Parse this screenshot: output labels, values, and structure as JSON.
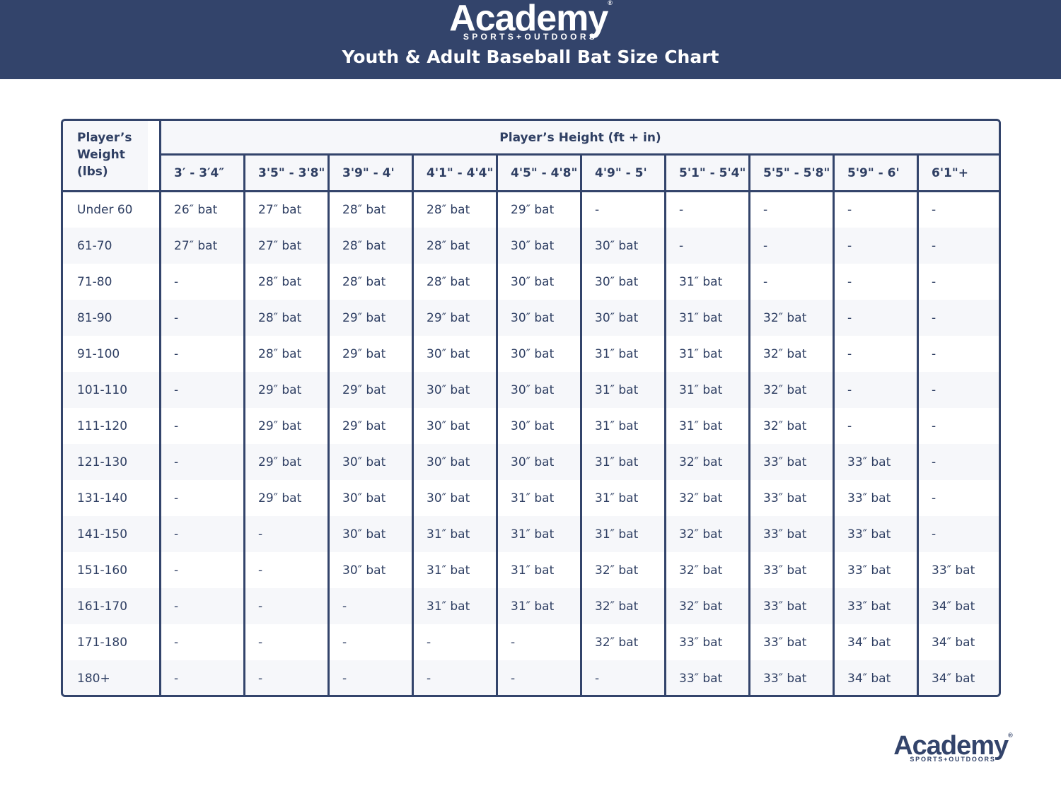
{
  "header": {
    "logo_word": "Academy",
    "logo_sub": "SPORTS+OUTDOORS",
    "title": "Youth & Adult Baseball Bat Size Chart",
    "background": "#33446b"
  },
  "table": {
    "weight_header": "Player’s Weight (lbs)",
    "height_header": "Player’s Height (ft + in)",
    "height_columns": [
      "3′ - 3′4″",
      "3'5\" - 3'8\"",
      "3'9\" - 4'",
      "4'1\" - 4'4\"",
      "4'5\" - 4'8\"",
      "4'9\" - 5'",
      "5'1\" - 5'4\"",
      "5'5\" - 5'8\"",
      "5'9\" - 6'",
      "6'1\"+"
    ],
    "rows": [
      {
        "weight": "Under 60",
        "values": [
          "26″ bat",
          "27″ bat",
          "28″ bat",
          "28″ bat",
          "29″ bat",
          "-",
          "-",
          "-",
          "-",
          "-"
        ]
      },
      {
        "weight": "61-70",
        "values": [
          "27″ bat",
          "27″ bat",
          "28″ bat",
          "28″ bat",
          "30″ bat",
          "30″ bat",
          "-",
          "-",
          "-",
          "-"
        ]
      },
      {
        "weight": "71-80",
        "values": [
          "-",
          "28″ bat",
          "28″ bat",
          "28″ bat",
          "30″ bat",
          "30″ bat",
          "31″ bat",
          "-",
          "-",
          "-"
        ]
      },
      {
        "weight": "81-90",
        "values": [
          "-",
          "28″ bat",
          "29″ bat",
          "29″ bat",
          "30″ bat",
          "30″ bat",
          "31″ bat",
          "32″ bat",
          "-",
          "-"
        ]
      },
      {
        "weight": "91-100",
        "values": [
          "-",
          "28″ bat",
          "29″ bat",
          "30″ bat",
          "30″ bat",
          "31″ bat",
          "31″ bat",
          "32″ bat",
          "-",
          "-"
        ]
      },
      {
        "weight": "101-110",
        "values": [
          "-",
          "29″ bat",
          "29″ bat",
          "30″ bat",
          "30″ bat",
          "31″ bat",
          "31″ bat",
          "32″ bat",
          "-",
          "-"
        ]
      },
      {
        "weight": "111-120",
        "values": [
          "-",
          "29″ bat",
          "29″ bat",
          "30″ bat",
          "30″ bat",
          "31″ bat",
          "31″ bat",
          "32″ bat",
          "-",
          "-"
        ]
      },
      {
        "weight": "121-130",
        "values": [
          "-",
          "29″ bat",
          "30″ bat",
          "30″ bat",
          "30″ bat",
          "31″ bat",
          "32″ bat",
          "33″ bat",
          "33″ bat",
          "-"
        ]
      },
      {
        "weight": "131-140",
        "values": [
          "-",
          "29″ bat",
          "30″ bat",
          "30″ bat",
          "31″ bat",
          "31″ bat",
          "32″ bat",
          "33″ bat",
          "33″ bat",
          "-"
        ]
      },
      {
        "weight": "141-150",
        "values": [
          "-",
          "-",
          "30″ bat",
          "31″ bat",
          "31″ bat",
          "31″ bat",
          "32″ bat",
          "33″ bat",
          "33″ bat",
          "-"
        ]
      },
      {
        "weight": "151-160",
        "values": [
          "-",
          "-",
          "30″ bat",
          "31″ bat",
          "31″ bat",
          "32″ bat",
          "32″ bat",
          "33″ bat",
          "33″ bat",
          "33″ bat"
        ]
      },
      {
        "weight": "161-170",
        "values": [
          "-",
          "-",
          "-",
          "31″ bat",
          "31″ bat",
          "32″ bat",
          "32″ bat",
          "33″ bat",
          "33″ bat",
          "34″ bat"
        ]
      },
      {
        "weight": "171-180",
        "values": [
          "-",
          "-",
          "-",
          "-",
          "-",
          "32″ bat",
          "33″ bat",
          "33″ bat",
          "34″ bat",
          "34″ bat"
        ]
      },
      {
        "weight": "180+",
        "values": [
          "-",
          "-",
          "-",
          "-",
          "-",
          "-",
          "33″ bat",
          "33″ bat",
          "34″ bat",
          "34″ bat"
        ]
      }
    ]
  },
  "footer": {
    "logo_word": "Academy",
    "logo_sub": "SPORTS+OUTDOORS"
  }
}
